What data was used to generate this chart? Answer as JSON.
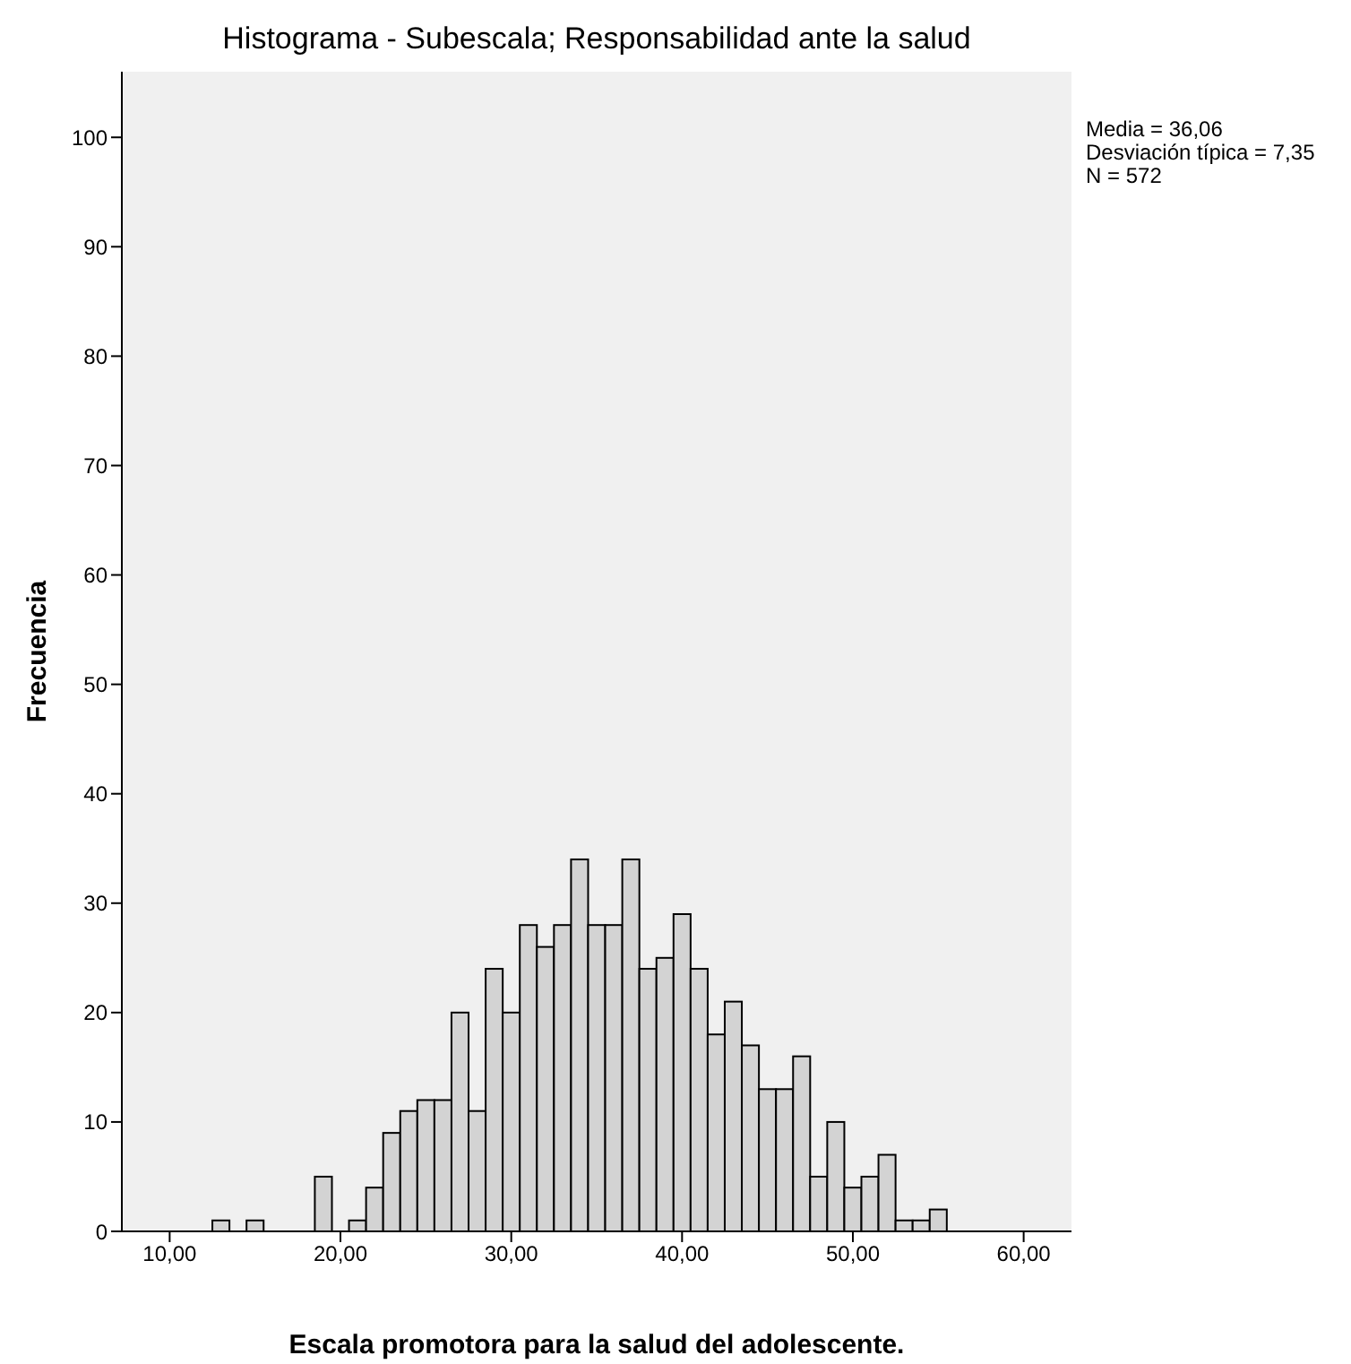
{
  "chart_data": {
    "type": "histogram",
    "title": "Histograma - Subescala; Responsabilidad ante la salud",
    "xlabel": "Escala promotora para la salud del adolescente.",
    "ylabel": "Frecuencia",
    "bins": [
      12.5,
      13.5,
      14.5,
      15.5,
      16.5,
      17.5,
      18.5,
      19.5,
      20.5,
      21.5,
      22.5,
      23.5,
      24.5,
      25.5,
      26.5,
      27.5,
      28.5,
      29.5,
      30.5,
      31.5,
      32.5,
      33.5,
      34.5,
      35.5,
      36.5,
      37.5,
      38.5,
      39.5,
      40.5,
      41.5,
      42.5,
      43.5,
      44.5,
      45.5,
      46.5,
      47.5,
      48.5,
      49.5,
      50.5,
      51.5,
      52.5,
      53.5,
      54.5,
      55.5
    ],
    "values": [
      1,
      0,
      1,
      0,
      0,
      0,
      5,
      0,
      1,
      4,
      9,
      11,
      12,
      12,
      20,
      11,
      24,
      20,
      28,
      26,
      28,
      34,
      28,
      28,
      34,
      24,
      25,
      29,
      24,
      18,
      21,
      17,
      13,
      13,
      16,
      5,
      10,
      4,
      5,
      7,
      1,
      1,
      2
    ],
    "color": "#d3d3d3",
    "xlim": [
      7.2,
      62.8
    ],
    "xticks": [
      {
        "value": 10,
        "label": "10,00"
      },
      {
        "value": 20,
        "label": "20,00"
      },
      {
        "value": 30,
        "label": "30,00"
      },
      {
        "value": 40,
        "label": "40,00"
      },
      {
        "value": 50,
        "label": "50,00"
      },
      {
        "value": 60,
        "label": "60,00"
      }
    ],
    "ylim": [
      0,
      106
    ],
    "yticks": [
      0,
      10,
      20,
      30,
      40,
      50,
      60,
      70,
      80,
      90,
      100
    ],
    "annotations": [
      "Media = 36,06",
      "Desviación típica = 7,35",
      "N = 572"
    ]
  }
}
